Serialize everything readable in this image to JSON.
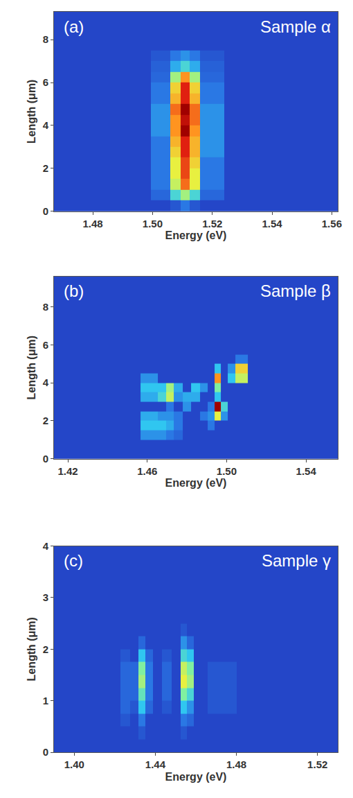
{
  "chart_data": [
    {
      "type": "heatmap",
      "panel_label": "(a)",
      "title": "Sample α",
      "x_label": "Energy (eV)",
      "y_label": "Length (μm)",
      "xlim": [
        1.467,
        1.562
      ],
      "ylim": [
        0,
        9.3
      ],
      "xticks": [
        1.48,
        {
          "value": 1.5,
          "label": "1.50"
        },
        1.52,
        1.54,
        1.56
      ],
      "yticks": [
        0,
        2,
        4,
        6,
        8
      ],
      "zlim": [
        0,
        1
      ],
      "x": [
        1.47,
        1.495,
        1.504,
        1.508,
        1.511,
        1.514,
        1.518,
        1.53,
        1.555
      ],
      "y": [
        0.25,
        0.75,
        1.25,
        1.75,
        2.25,
        2.75,
        3.25,
        3.75,
        4.25,
        4.75,
        5.25,
        5.75,
        6.25,
        6.75,
        7.25,
        7.75,
        8.25,
        8.75,
        9.25
      ],
      "z": [
        [
          0,
          0,
          0,
          0.05,
          0.15,
          0.05,
          0,
          0,
          0
        ],
        [
          0,
          0,
          0.1,
          0.35,
          0.5,
          0.35,
          0.1,
          0,
          0
        ],
        [
          0,
          0,
          0.15,
          0.55,
          0.8,
          0.6,
          0.15,
          0,
          0
        ],
        [
          0,
          0,
          0.15,
          0.6,
          0.85,
          0.6,
          0.15,
          0,
          0
        ],
        [
          0,
          0,
          0.15,
          0.6,
          0.85,
          0.65,
          0.15,
          0,
          0
        ],
        [
          0,
          0,
          0.15,
          0.65,
          0.9,
          0.7,
          0.2,
          0,
          0
        ],
        [
          0,
          0,
          0.15,
          0.7,
          0.9,
          0.7,
          0.2,
          0,
          0
        ],
        [
          0,
          0,
          0.2,
          0.75,
          1.0,
          0.75,
          0.2,
          0,
          0
        ],
        [
          0,
          0,
          0.2,
          0.75,
          0.95,
          0.8,
          0.2,
          0,
          0
        ],
        [
          0,
          0,
          0.2,
          0.8,
          1.0,
          0.8,
          0.2,
          0,
          0
        ],
        [
          0,
          0,
          0.15,
          0.7,
          0.9,
          0.7,
          0.15,
          0,
          0
        ],
        [
          0,
          0,
          0.15,
          0.65,
          0.9,
          0.65,
          0.15,
          0,
          0
        ],
        [
          0,
          0,
          0.1,
          0.5,
          0.75,
          0.5,
          0.1,
          0,
          0
        ],
        [
          0,
          0,
          0.08,
          0.25,
          0.35,
          0.25,
          0.08,
          0,
          0
        ],
        [
          0,
          0,
          0.05,
          0.15,
          0.2,
          0.15,
          0.05,
          0,
          0
        ],
        [
          0,
          0,
          0,
          0,
          0,
          0,
          0,
          0,
          0
        ],
        [
          0,
          0,
          0,
          0,
          0,
          0,
          0,
          0,
          0
        ],
        [
          0,
          0,
          0,
          0,
          0,
          0,
          0,
          0,
          0
        ],
        [
          0,
          0,
          0,
          0,
          0,
          0,
          0,
          0,
          0
        ]
      ]
    },
    {
      "type": "heatmap",
      "panel_label": "(b)",
      "title": "Sample β",
      "x_label": "Energy (eV)",
      "y_label": "Length (μm)",
      "xlim": [
        1.413,
        1.556
      ],
      "ylim": [
        0,
        9.6
      ],
      "xticks": [
        1.42,
        1.46,
        {
          "value": 1.5,
          "label": "1.50"
        },
        1.54
      ],
      "yticks": [
        0,
        2,
        4,
        6,
        8
      ],
      "zlim": [
        0,
        1
      ],
      "x": [
        1.42,
        1.45,
        1.4635,
        1.4675,
        1.4715,
        1.4755,
        1.48,
        1.4845,
        1.4885,
        1.4925,
        1.4955,
        1.4985,
        1.5025,
        1.5065,
        1.515,
        1.545
      ],
      "y": [
        0.25,
        0.75,
        1.25,
        1.75,
        2.25,
        2.75,
        3.25,
        3.75,
        4.25,
        4.75,
        5.25,
        5.75,
        6.25,
        6.75,
        7.25,
        7.75,
        8.25,
        8.75,
        9.25
      ],
      "z": [
        [
          0,
          0,
          0,
          0,
          0,
          0,
          0,
          0,
          0,
          0,
          0,
          0,
          0,
          0,
          0,
          0
        ],
        [
          0,
          0,
          0,
          0,
          0,
          0,
          0,
          0,
          0,
          0,
          0,
          0,
          0,
          0,
          0,
          0
        ],
        [
          0,
          0,
          0.2,
          0.2,
          0.15,
          0.1,
          0,
          0,
          0,
          0,
          0,
          0,
          0,
          0,
          0,
          0
        ],
        [
          0,
          0,
          0.3,
          0.3,
          0.25,
          0.15,
          0,
          0,
          0,
          0.15,
          0,
          0,
          0,
          0,
          0,
          0
        ],
        [
          0,
          0,
          0.25,
          0.2,
          0.2,
          0.15,
          0,
          0,
          0.15,
          0.2,
          0.6,
          0.2,
          0,
          0,
          0,
          0
        ],
        [
          0,
          0,
          0,
          0,
          0.15,
          0,
          0.2,
          0,
          0,
          0.15,
          1.0,
          0.35,
          0,
          0,
          0,
          0
        ],
        [
          0,
          0,
          0.25,
          0.35,
          0.55,
          0.2,
          0.25,
          0.25,
          0,
          0,
          0.3,
          0,
          0,
          0,
          0,
          0
        ],
        [
          0,
          0,
          0.3,
          0.3,
          0.5,
          0.25,
          0,
          0.3,
          0.2,
          0,
          0.45,
          0,
          0,
          0,
          0,
          0
        ],
        [
          0,
          0,
          0.2,
          0,
          0,
          0,
          0,
          0,
          0,
          0,
          0.75,
          0,
          0.3,
          0.55,
          0,
          0
        ],
        [
          0,
          0,
          0,
          0,
          0,
          0,
          0,
          0,
          0,
          0,
          0.3,
          0,
          0.2,
          0.65,
          0,
          0
        ],
        [
          0,
          0,
          0,
          0,
          0,
          0,
          0,
          0,
          0,
          0,
          0,
          0,
          0,
          0.15,
          0,
          0
        ],
        [
          0,
          0,
          0,
          0,
          0,
          0,
          0,
          0,
          0,
          0,
          0,
          0,
          0,
          0,
          0,
          0
        ],
        [
          0,
          0,
          0,
          0,
          0,
          0,
          0,
          0,
          0,
          0,
          0,
          0,
          0,
          0,
          0,
          0
        ],
        [
          0,
          0,
          0,
          0,
          0,
          0,
          0,
          0,
          0,
          0,
          0,
          0,
          0,
          0,
          0,
          0
        ],
        [
          0,
          0,
          0,
          0,
          0,
          0,
          0,
          0,
          0,
          0,
          0,
          0,
          0,
          0,
          0,
          0
        ],
        [
          0,
          0,
          0,
          0,
          0,
          0,
          0,
          0,
          0,
          0,
          0,
          0,
          0,
          0,
          0,
          0
        ],
        [
          0,
          0,
          0,
          0,
          0,
          0,
          0,
          0,
          0,
          0,
          0,
          0,
          0,
          0,
          0,
          0
        ],
        [
          0,
          0,
          0,
          0,
          0,
          0,
          0,
          0,
          0,
          0,
          0,
          0,
          0,
          0,
          0,
          0
        ],
        [
          0,
          0,
          0,
          0,
          0,
          0,
          0,
          0,
          0,
          0,
          0,
          0,
          0,
          0,
          0,
          0
        ]
      ]
    },
    {
      "type": "heatmap",
      "panel_label": "(c)",
      "title": "Sample γ",
      "x_label": "Energy (eV)",
      "y_label": "Length (μm)",
      "xlim": [
        1.39,
        1.53
      ],
      "ylim": [
        0,
        4
      ],
      "xticks": [
        {
          "value": 1.4,
          "label": "1.40"
        },
        1.44,
        1.48,
        1.52
      ],
      "yticks": [
        0,
        1,
        2,
        3,
        4
      ],
      "zlim": [
        0,
        1
      ],
      "x": [
        1.4,
        1.42,
        1.4255,
        1.4295,
        1.4335,
        1.4365,
        1.441,
        1.4455,
        1.4505,
        1.4545,
        1.4565,
        1.4615,
        1.47,
        1.49,
        1.52
      ],
      "y": [
        0.125,
        0.375,
        0.625,
        0.875,
        1.125,
        1.375,
        1.625,
        1.875,
        2.125,
        2.375,
        2.625,
        2.875,
        3.125,
        3.375,
        3.625,
        3.875
      ],
      "z": [
        [
          0,
          0,
          0,
          0,
          0,
          0,
          0,
          0,
          0,
          0,
          0,
          0,
          0,
          0,
          0
        ],
        [
          0,
          0,
          0,
          0,
          0.05,
          0,
          0,
          0,
          0,
          0.05,
          0,
          0,
          0,
          0,
          0
        ],
        [
          0,
          0,
          0.05,
          0,
          0.15,
          0,
          0,
          0,
          0,
          0.15,
          0.1,
          0,
          0,
          0,
          0
        ],
        [
          0,
          0,
          0.1,
          0.05,
          0.3,
          0.1,
          0,
          0.05,
          0,
          0.3,
          0.2,
          0,
          0.05,
          0,
          0
        ],
        [
          0,
          0,
          0.1,
          0.1,
          0.4,
          0.15,
          0,
          0.1,
          0,
          0.45,
          0.35,
          0,
          0.05,
          0,
          0
        ],
        [
          0,
          0,
          0.1,
          0.1,
          0.5,
          0.15,
          0,
          0.1,
          0,
          0.6,
          0.5,
          0,
          0.05,
          0,
          0
        ],
        [
          0,
          0,
          0.1,
          0.1,
          0.45,
          0.15,
          0,
          0.1,
          0,
          0.55,
          0.45,
          0,
          0.05,
          0,
          0
        ],
        [
          0,
          0,
          0.05,
          0,
          0.3,
          0.1,
          0,
          0.05,
          0,
          0.35,
          0.3,
          0,
          0,
          0,
          0
        ],
        [
          0,
          0,
          0,
          0,
          0.1,
          0,
          0,
          0,
          0,
          0.2,
          0.1,
          0,
          0,
          0,
          0
        ],
        [
          0,
          0,
          0,
          0,
          0,
          0,
          0,
          0,
          0,
          0.05,
          0,
          0,
          0,
          0,
          0
        ],
        [
          0,
          0,
          0,
          0,
          0,
          0,
          0,
          0,
          0,
          0,
          0,
          0,
          0,
          0,
          0
        ],
        [
          0,
          0,
          0,
          0,
          0,
          0,
          0,
          0,
          0,
          0,
          0,
          0,
          0,
          0,
          0
        ],
        [
          0,
          0,
          0,
          0,
          0,
          0,
          0,
          0,
          0,
          0,
          0,
          0,
          0,
          0,
          0
        ],
        [
          0,
          0,
          0,
          0,
          0,
          0,
          0,
          0,
          0,
          0,
          0,
          0,
          0,
          0,
          0
        ],
        [
          0,
          0,
          0,
          0,
          0,
          0,
          0,
          0,
          0,
          0,
          0,
          0,
          0,
          0,
          0
        ],
        [
          0,
          0,
          0,
          0,
          0,
          0,
          0,
          0,
          0,
          0,
          0,
          0,
          0,
          0,
          0
        ]
      ]
    }
  ]
}
